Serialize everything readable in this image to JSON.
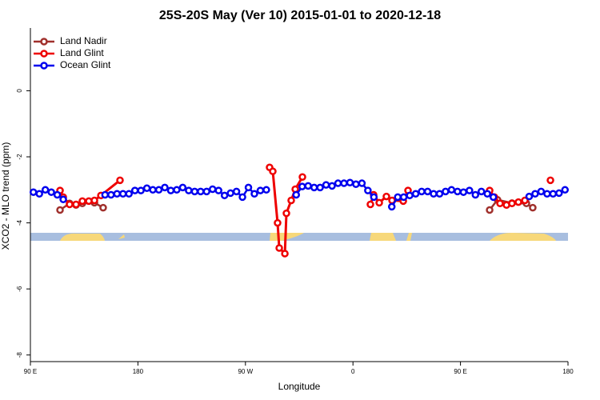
{
  "chart_data": {
    "type": "line",
    "title": "25S-20S May (Ver 10)   2015-01-01 to 2020-12-18",
    "x_label": "Longitude",
    "y_label": "XCO2 - MLO trend (ppm)",
    "xlim": [
      90,
      540
    ],
    "ylim": [
      -8.2,
      1.9
    ],
    "xticks": [
      {
        "value": 90,
        "label": "90 E"
      },
      180,
      {
        "value": 270,
        "label": "90 W"
      },
      {
        "value": 360,
        "label": "0"
      },
      {
        "value": 450,
        "label": "90 E"
      },
      {
        "value": 540,
        "label": "180"
      }
    ],
    "yticks": [
      0,
      -2,
      -4,
      -6,
      -8
    ],
    "legend": "top-left",
    "series": [
      {
        "name": "Land Nadir",
        "color": "#a0302c",
        "x": [
          114.8,
          122.8,
          128.2,
          133.5,
          143.6,
          150.9,
          300,
          474.4,
          481,
          493.1,
          505.2,
          510.5
        ],
        "values": [
          -3.61,
          -3.41,
          -3.46,
          -3.41,
          -3.39,
          -3.54,
          null,
          -3.61,
          -3.3,
          -3.4,
          -3.41,
          -3.54
        ]
      },
      {
        "name": "Land Glint",
        "color": "#ee0000",
        "x": [
          114.8,
          117.5,
          122.8,
          128.2,
          133.5,
          138.9,
          143.6,
          149,
          165,
          230,
          290.2,
          292.9,
          296.9,
          298.3,
          303,
          304.3,
          308.3,
          311.7,
          317.7,
          340,
          374.6,
          377.3,
          382,
          388,
          392.7,
          402.1,
          406.1,
          440,
          474.4,
          478.4,
          483.1,
          488.5,
          493.1,
          498.5,
          503.9,
          515,
          525.3
        ],
        "values": [
          -3.02,
          -3.22,
          -3.44,
          -3.44,
          -3.34,
          -3.34,
          -3.32,
          -3.17,
          -2.71,
          null,
          -2.32,
          -2.44,
          -4.0,
          -4.76,
          -4.93,
          -3.71,
          -3.32,
          -2.98,
          -2.61,
          null,
          -3.44,
          -3.15,
          -3.39,
          -3.2,
          -3.32,
          -3.34,
          -3.02,
          null,
          -3.02,
          -3.22,
          -3.41,
          -3.46,
          -3.41,
          -3.37,
          -3.32,
          null,
          -2.71
        ]
      },
      {
        "name": "Ocean Glint",
        "color": "#0000ee",
        "x": [
          92.5,
          97.5,
          102.5,
          107.5,
          112.5,
          117.5,
          122.5,
          152.5,
          157.5,
          162.5,
          167.5,
          172.5,
          177.5,
          182.5,
          187.5,
          192.5,
          197.5,
          202.5,
          207.5,
          212.5,
          217.5,
          222.5,
          227.5,
          232.5,
          237.5,
          242.5,
          247.5,
          252.5,
          257.5,
          262.5,
          267.5,
          272.5,
          277.5,
          282.5,
          287.5,
          292.5,
          312.5,
          317.5,
          322.5,
          327.5,
          332.5,
          337.5,
          342.5,
          347.5,
          352.5,
          357.5,
          362.5,
          367.5,
          372.5,
          377.5,
          382.5,
          392.5,
          397.5,
          402.5,
          407.5,
          412.5,
          417.5,
          422.5,
          427.5,
          432.5,
          437.5,
          442.5,
          447.5,
          452.5,
          457.5,
          462.5,
          467.5,
          472.5,
          477.5,
          482.5,
          507.5,
          512.5,
          517.5,
          522.5,
          527.5,
          532.5,
          537.5
        ],
        "values": [
          -3.07,
          -3.12,
          -3.0,
          -3.07,
          -3.15,
          -3.29,
          null,
          -3.15,
          -3.15,
          -3.12,
          -3.12,
          -3.12,
          -3.02,
          -3.02,
          -2.95,
          -3.0,
          -3.0,
          -2.93,
          -3.02,
          -3.0,
          -2.93,
          -3.02,
          -3.05,
          -3.05,
          -3.05,
          -2.98,
          -3.02,
          -3.17,
          -3.1,
          -3.05,
          -3.22,
          -2.93,
          -3.12,
          -3.02,
          -3.0,
          null,
          -3.15,
          -2.9,
          -2.88,
          -2.93,
          -2.93,
          -2.85,
          -2.88,
          -2.8,
          -2.8,
          -2.78,
          -2.83,
          -2.8,
          -3.02,
          -3.22,
          null,
          -3.51,
          -3.22,
          -3.22,
          -3.17,
          -3.12,
          -3.05,
          -3.05,
          -3.12,
          -3.12,
          -3.05,
          -3.0,
          -3.05,
          -3.07,
          -3.02,
          -3.15,
          -3.05,
          -3.12,
          -3.22,
          null,
          -3.2,
          -3.12,
          -3.05,
          -3.12,
          -3.12,
          -3.1,
          -3.0
        ]
      }
    ]
  }
}
